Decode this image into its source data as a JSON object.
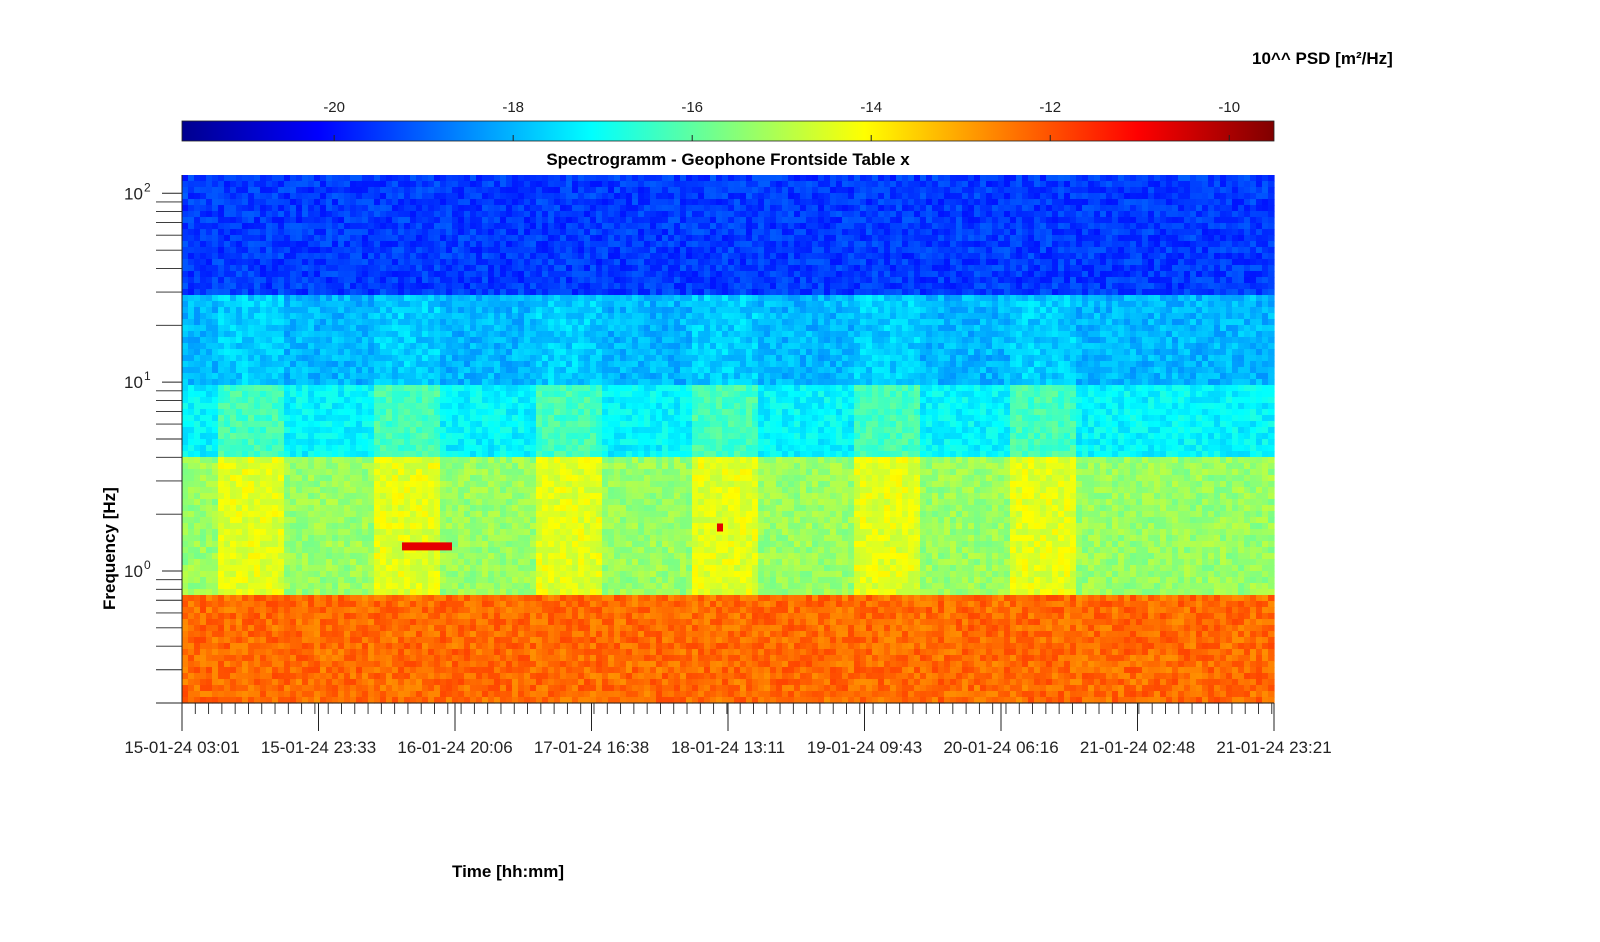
{
  "chart_data": {
    "type": "heatmap",
    "title": "Spectrogramm - Geophone Frontside Table x",
    "xlabel": "Time [hh:mm]",
    "ylabel": "Frequency [Hz]",
    "colorbar": {
      "label": "10^^ PSD [m²/Hz]",
      "range": [
        -21.7,
        -9.5
      ],
      "ticks": [
        -20,
        -18,
        -16,
        -14,
        -12,
        -10
      ],
      "tick_labels": [
        "-20",
        "-18",
        "-16",
        "-14",
        "-12",
        "-10"
      ],
      "colormap": "jet",
      "location": "top"
    },
    "x": {
      "start": "15-01-24 03:01",
      "end": "21-01-24 23:21",
      "tick_labels": [
        "15-01-24 03:01",
        "15-01-24 23:33",
        "16-01-24 20:06",
        "17-01-24 16:38",
        "18-01-24 13:11",
        "19-01-24 09:43",
        "20-01-24 06:16",
        "21-01-24 02:48",
        "21-01-24 23:21"
      ]
    },
    "y": {
      "scale": "log",
      "range": [
        0.2,
        125
      ],
      "ticks": [
        1,
        10,
        100
      ],
      "tick_labels": [
        "10^0",
        "10^1",
        "10^2"
      ]
    },
    "features": {
      "band_levels_log10_psd": [
        {
          "freq_hz": [
            30,
            125
          ],
          "level": -19.5
        },
        {
          "freq_hz": [
            10,
            30
          ],
          "level": -18.0
        },
        {
          "freq_hz": [
            4,
            10
          ],
          "level": -17.2
        },
        {
          "freq_hz": [
            0.75,
            4
          ],
          "level": -15.3
        },
        {
          "freq_hz": [
            0.2,
            0.75
          ],
          "level": -12.3
        }
      ],
      "daytime_activity_windows": [
        [
          "15-01-24 08:00",
          "15-01-24 18:00"
        ],
        [
          "16-01-24 08:00",
          "16-01-24 18:00"
        ],
        [
          "17-01-24 08:00",
          "17-01-24 18:00"
        ],
        [
          "18-01-24 08:00",
          "18-01-24 18:00"
        ],
        [
          "19-01-24 08:00",
          "19-01-24 18:00"
        ],
        [
          "20-01-24 08:00",
          "20-01-24 18:00"
        ]
      ],
      "narrowband_event_hz": [
        1.35,
        1.7
      ]
    }
  },
  "colors": {
    "background": "#ffffff",
    "axis": "#222222"
  }
}
